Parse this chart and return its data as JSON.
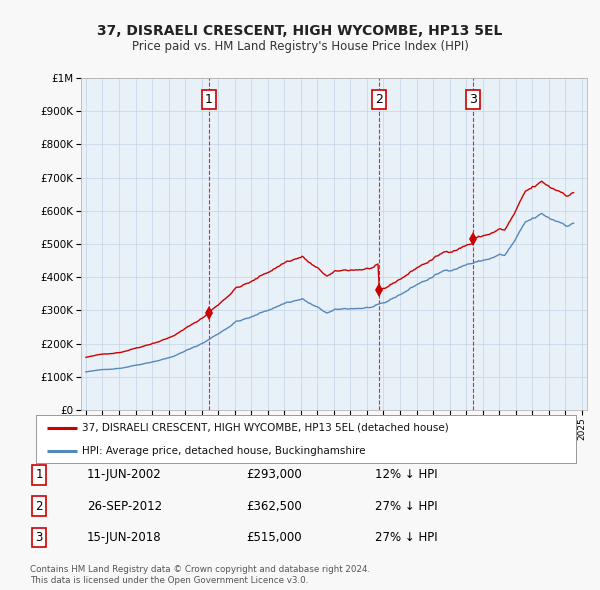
{
  "title": "37, DISRAELI CRESCENT, HIGH WYCOMBE, HP13 5EL",
  "subtitle": "Price paid vs. HM Land Registry's House Price Index (HPI)",
  "red_label": "37, DISRAELI CRESCENT, HIGH WYCOMBE, HP13 5EL (detached house)",
  "blue_label": "HPI: Average price, detached house, Buckinghamshire",
  "footer1": "Contains HM Land Registry data © Crown copyright and database right 2024.",
  "footer2": "This data is licensed under the Open Government Licence v3.0.",
  "sales": [
    {
      "num": 1,
      "date": "11-JUN-2002",
      "price": 293000,
      "pct": "12%",
      "dir": "↓",
      "x": 2002.44
    },
    {
      "num": 2,
      "date": "26-SEP-2012",
      "price": 362500,
      "pct": "27%",
      "dir": "↓",
      "x": 2012.73
    },
    {
      "num": 3,
      "date": "15-JUN-2018",
      "price": 515000,
      "pct": "27%",
      "dir": "↓",
      "x": 2018.44
    }
  ],
  "ylim": [
    0,
    1000000
  ],
  "xlim": [
    1994.7,
    2025.3
  ],
  "background_color": "#f0f4f8",
  "plot_bg_color": "#e8f0f8",
  "grid_color": "#c8d8e8",
  "red_color": "#cc0000",
  "blue_color": "#5588bb",
  "marker_color": "#990000"
}
